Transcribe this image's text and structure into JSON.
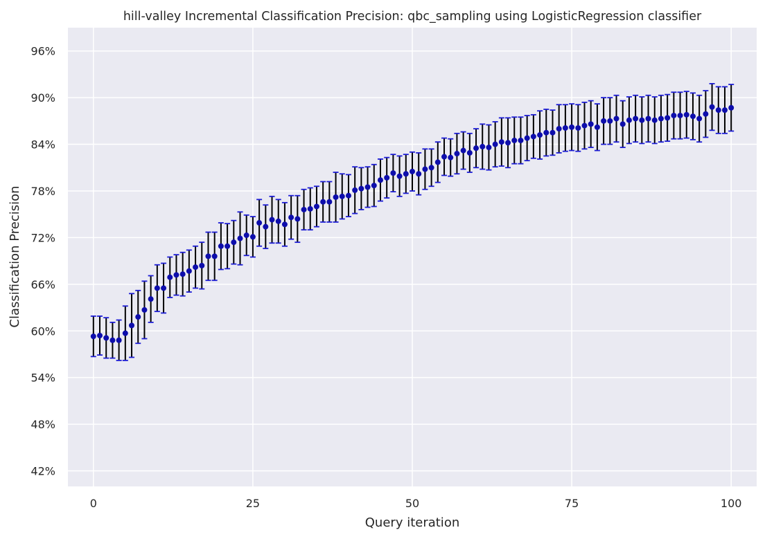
{
  "chart_data": {
    "type": "scatter",
    "title": "hill-valley Incremental Classification Precision: qbc_sampling using LogisticRegression classifier",
    "xlabel": "Query iteration",
    "ylabel": "Classification Precision",
    "xlim": [
      -4,
      104
    ],
    "ylim": [
      0.4,
      0.99
    ],
    "x_ticks": [
      0,
      25,
      50,
      75,
      100
    ],
    "x_tick_labels": [
      "0",
      "25",
      "50",
      "75",
      "100"
    ],
    "y_ticks": [
      0.42,
      0.48,
      0.54,
      0.6,
      0.66,
      0.72,
      0.78,
      0.84,
      0.9,
      0.96
    ],
    "y_tick_labels": [
      "42%",
      "48%",
      "54%",
      "60%",
      "66%",
      "72%",
      "78%",
      "84%",
      "90%",
      "96%"
    ],
    "grid": true,
    "colors": {
      "plot_bg": "#EAEAF2",
      "point": "#0D0DAC",
      "error_bar": "#000000",
      "cap": "#1C1CD6",
      "grid": "#FFFFFF"
    },
    "series": [
      {
        "x": [
          0,
          1,
          2,
          3,
          4,
          5,
          6,
          7,
          8,
          9,
          10,
          11,
          12,
          13,
          14,
          15,
          16,
          17,
          18,
          19,
          20,
          21,
          22,
          23,
          24,
          25,
          26,
          27,
          28,
          29,
          30,
          31,
          32,
          33,
          34,
          35,
          36,
          37,
          38,
          39,
          40,
          41,
          42,
          43,
          44,
          45,
          46,
          47,
          48,
          49,
          50,
          51,
          52,
          53,
          54,
          55,
          56,
          57,
          58,
          59,
          60,
          61,
          62,
          63,
          64,
          65,
          66,
          67,
          68,
          69,
          70,
          71,
          72,
          73,
          74,
          75,
          76,
          77,
          78,
          79,
          80,
          81,
          82,
          83,
          84,
          85,
          86,
          87,
          88,
          89,
          90,
          91,
          92,
          93,
          94,
          95,
          96,
          97,
          98,
          99,
          100
        ],
        "y": [
          0.593,
          0.594,
          0.591,
          0.588,
          0.588,
          0.597,
          0.607,
          0.618,
          0.627,
          0.641,
          0.655,
          0.655,
          0.669,
          0.672,
          0.673,
          0.677,
          0.682,
          0.684,
          0.696,
          0.696,
          0.709,
          0.709,
          0.714,
          0.719,
          0.723,
          0.721,
          0.739,
          0.734,
          0.743,
          0.741,
          0.737,
          0.746,
          0.744,
          0.756,
          0.757,
          0.76,
          0.766,
          0.766,
          0.772,
          0.773,
          0.774,
          0.781,
          0.783,
          0.785,
          0.787,
          0.794,
          0.797,
          0.803,
          0.799,
          0.802,
          0.805,
          0.802,
          0.808,
          0.81,
          0.817,
          0.824,
          0.823,
          0.828,
          0.832,
          0.829,
          0.835,
          0.837,
          0.836,
          0.84,
          0.843,
          0.842,
          0.845,
          0.845,
          0.848,
          0.85,
          0.852,
          0.855,
          0.855,
          0.86,
          0.861,
          0.862,
          0.861,
          0.864,
          0.866,
          0.862,
          0.87,
          0.87,
          0.873,
          0.866,
          0.871,
          0.873,
          0.871,
          0.873,
          0.871,
          0.873,
          0.874,
          0.877,
          0.877,
          0.878,
          0.876,
          0.873,
          0.879,
          0.888,
          0.884,
          0.884,
          0.887
        ],
        "error": [
          0.026,
          0.025,
          0.026,
          0.023,
          0.026,
          0.035,
          0.041,
          0.034,
          0.037,
          0.03,
          0.03,
          0.032,
          0.026,
          0.026,
          0.028,
          0.027,
          0.027,
          0.03,
          0.031,
          0.031,
          0.03,
          0.029,
          0.028,
          0.034,
          0.026,
          0.026,
          0.03,
          0.028,
          0.03,
          0.028,
          0.028,
          0.028,
          0.03,
          0.026,
          0.027,
          0.026,
          0.026,
          0.026,
          0.032,
          0.029,
          0.027,
          0.03,
          0.027,
          0.026,
          0.027,
          0.027,
          0.026,
          0.024,
          0.026,
          0.025,
          0.025,
          0.027,
          0.026,
          0.024,
          0.026,
          0.024,
          0.024,
          0.026,
          0.024,
          0.025,
          0.025,
          0.029,
          0.029,
          0.029,
          0.031,
          0.032,
          0.03,
          0.03,
          0.029,
          0.028,
          0.031,
          0.03,
          0.029,
          0.031,
          0.03,
          0.03,
          0.03,
          0.03,
          0.03,
          0.03,
          0.03,
          0.03,
          0.03,
          0.03,
          0.03,
          0.03,
          0.03,
          0.03,
          0.03,
          0.03,
          0.03,
          0.03,
          0.03,
          0.03,
          0.03,
          0.03,
          0.03,
          0.03,
          0.03,
          0.03,
          0.03
        ]
      }
    ]
  }
}
